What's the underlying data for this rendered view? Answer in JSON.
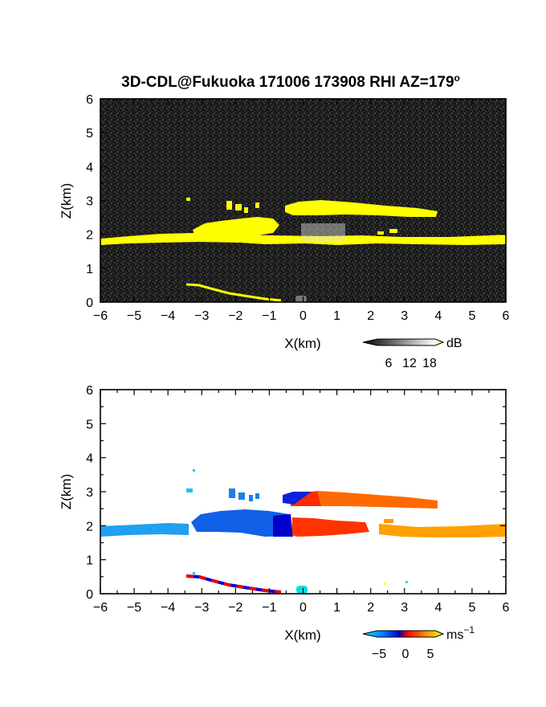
{
  "figure": {
    "title": "3D-CDL@Fukuoka 171006 173908 RHI AZ=179",
    "title_superscript": "o"
  },
  "chart_data": [
    {
      "type": "heatmap",
      "panel": "reflectivity",
      "xlabel": "X(km)",
      "ylabel": "Z(km)",
      "xlim": [
        -6,
        6
      ],
      "ylim": [
        0,
        6
      ],
      "x_ticks": [
        -6,
        -5,
        -4,
        -3,
        -2,
        -1,
        0,
        1,
        2,
        3,
        4,
        5,
        6
      ],
      "y_ticks": [
        0,
        1,
        2,
        3,
        4,
        5,
        6
      ],
      "background": "noise",
      "colorbar": {
        "unit": "dB",
        "ticks": [
          6,
          12,
          18
        ],
        "colors": [
          "#000000",
          "#ffffff",
          "#ffff00"
        ]
      },
      "features": [
        {
          "name": "lower layer",
          "x": [
            -6.0,
            6.0
          ],
          "z": [
            1.75,
            2.0
          ],
          "value_db": 18
        },
        {
          "name": "upper layer",
          "x": [
            -0.5,
            4.0
          ],
          "z": [
            2.6,
            3.0
          ],
          "value_db": 18
        },
        {
          "name": "mid cell",
          "x": [
            -3.2,
            -0.7
          ],
          "z": [
            2.0,
            2.4
          ],
          "value_db": 18
        },
        {
          "name": "ground echo",
          "x": [
            -3.5,
            -0.7
          ],
          "z": [
            0.0,
            0.5
          ],
          "value_db": 18
        }
      ]
    },
    {
      "type": "heatmap",
      "panel": "doppler velocity",
      "xlabel": "X(km)",
      "ylabel": "Z(km)",
      "xlim": [
        -6,
        6
      ],
      "ylim": [
        0,
        6
      ],
      "x_ticks": [
        -6,
        -5,
        -4,
        -3,
        -2,
        -1,
        0,
        1,
        2,
        3,
        4,
        5,
        6
      ],
      "y_ticks": [
        0,
        1,
        2,
        3,
        4,
        5,
        6
      ],
      "colorbar": {
        "unit": "ms",
        "unit_superscript": "−1",
        "ticks": [
          "−5",
          "0",
          "5"
        ],
        "range": [
          -7,
          7
        ]
      },
      "features": [
        {
          "name": "lower layer west",
          "x": [
            -6.0,
            -3.5
          ],
          "z": [
            1.7,
            1.95
          ],
          "velocity": -6
        },
        {
          "name": "lower layer center",
          "x": [
            -3.0,
            -0.5
          ],
          "z": [
            1.75,
            2.4
          ],
          "velocity": -4
        },
        {
          "name": "lower layer east",
          "x": [
            -0.3,
            2.0
          ],
          "z": [
            1.7,
            2.1
          ],
          "velocity": 1
        },
        {
          "name": "lower layer far east",
          "x": [
            2.2,
            6.0
          ],
          "z": [
            1.65,
            2.0
          ],
          "velocity": 6
        },
        {
          "name": "upper layer",
          "x": [
            -0.6,
            4.0
          ],
          "z": [
            2.6,
            3.0
          ],
          "velocity": 3
        },
        {
          "name": "ground echo",
          "x": [
            -3.5,
            -0.7
          ],
          "z": [
            0.0,
            0.5
          ],
          "velocity": 0
        }
      ]
    }
  ]
}
